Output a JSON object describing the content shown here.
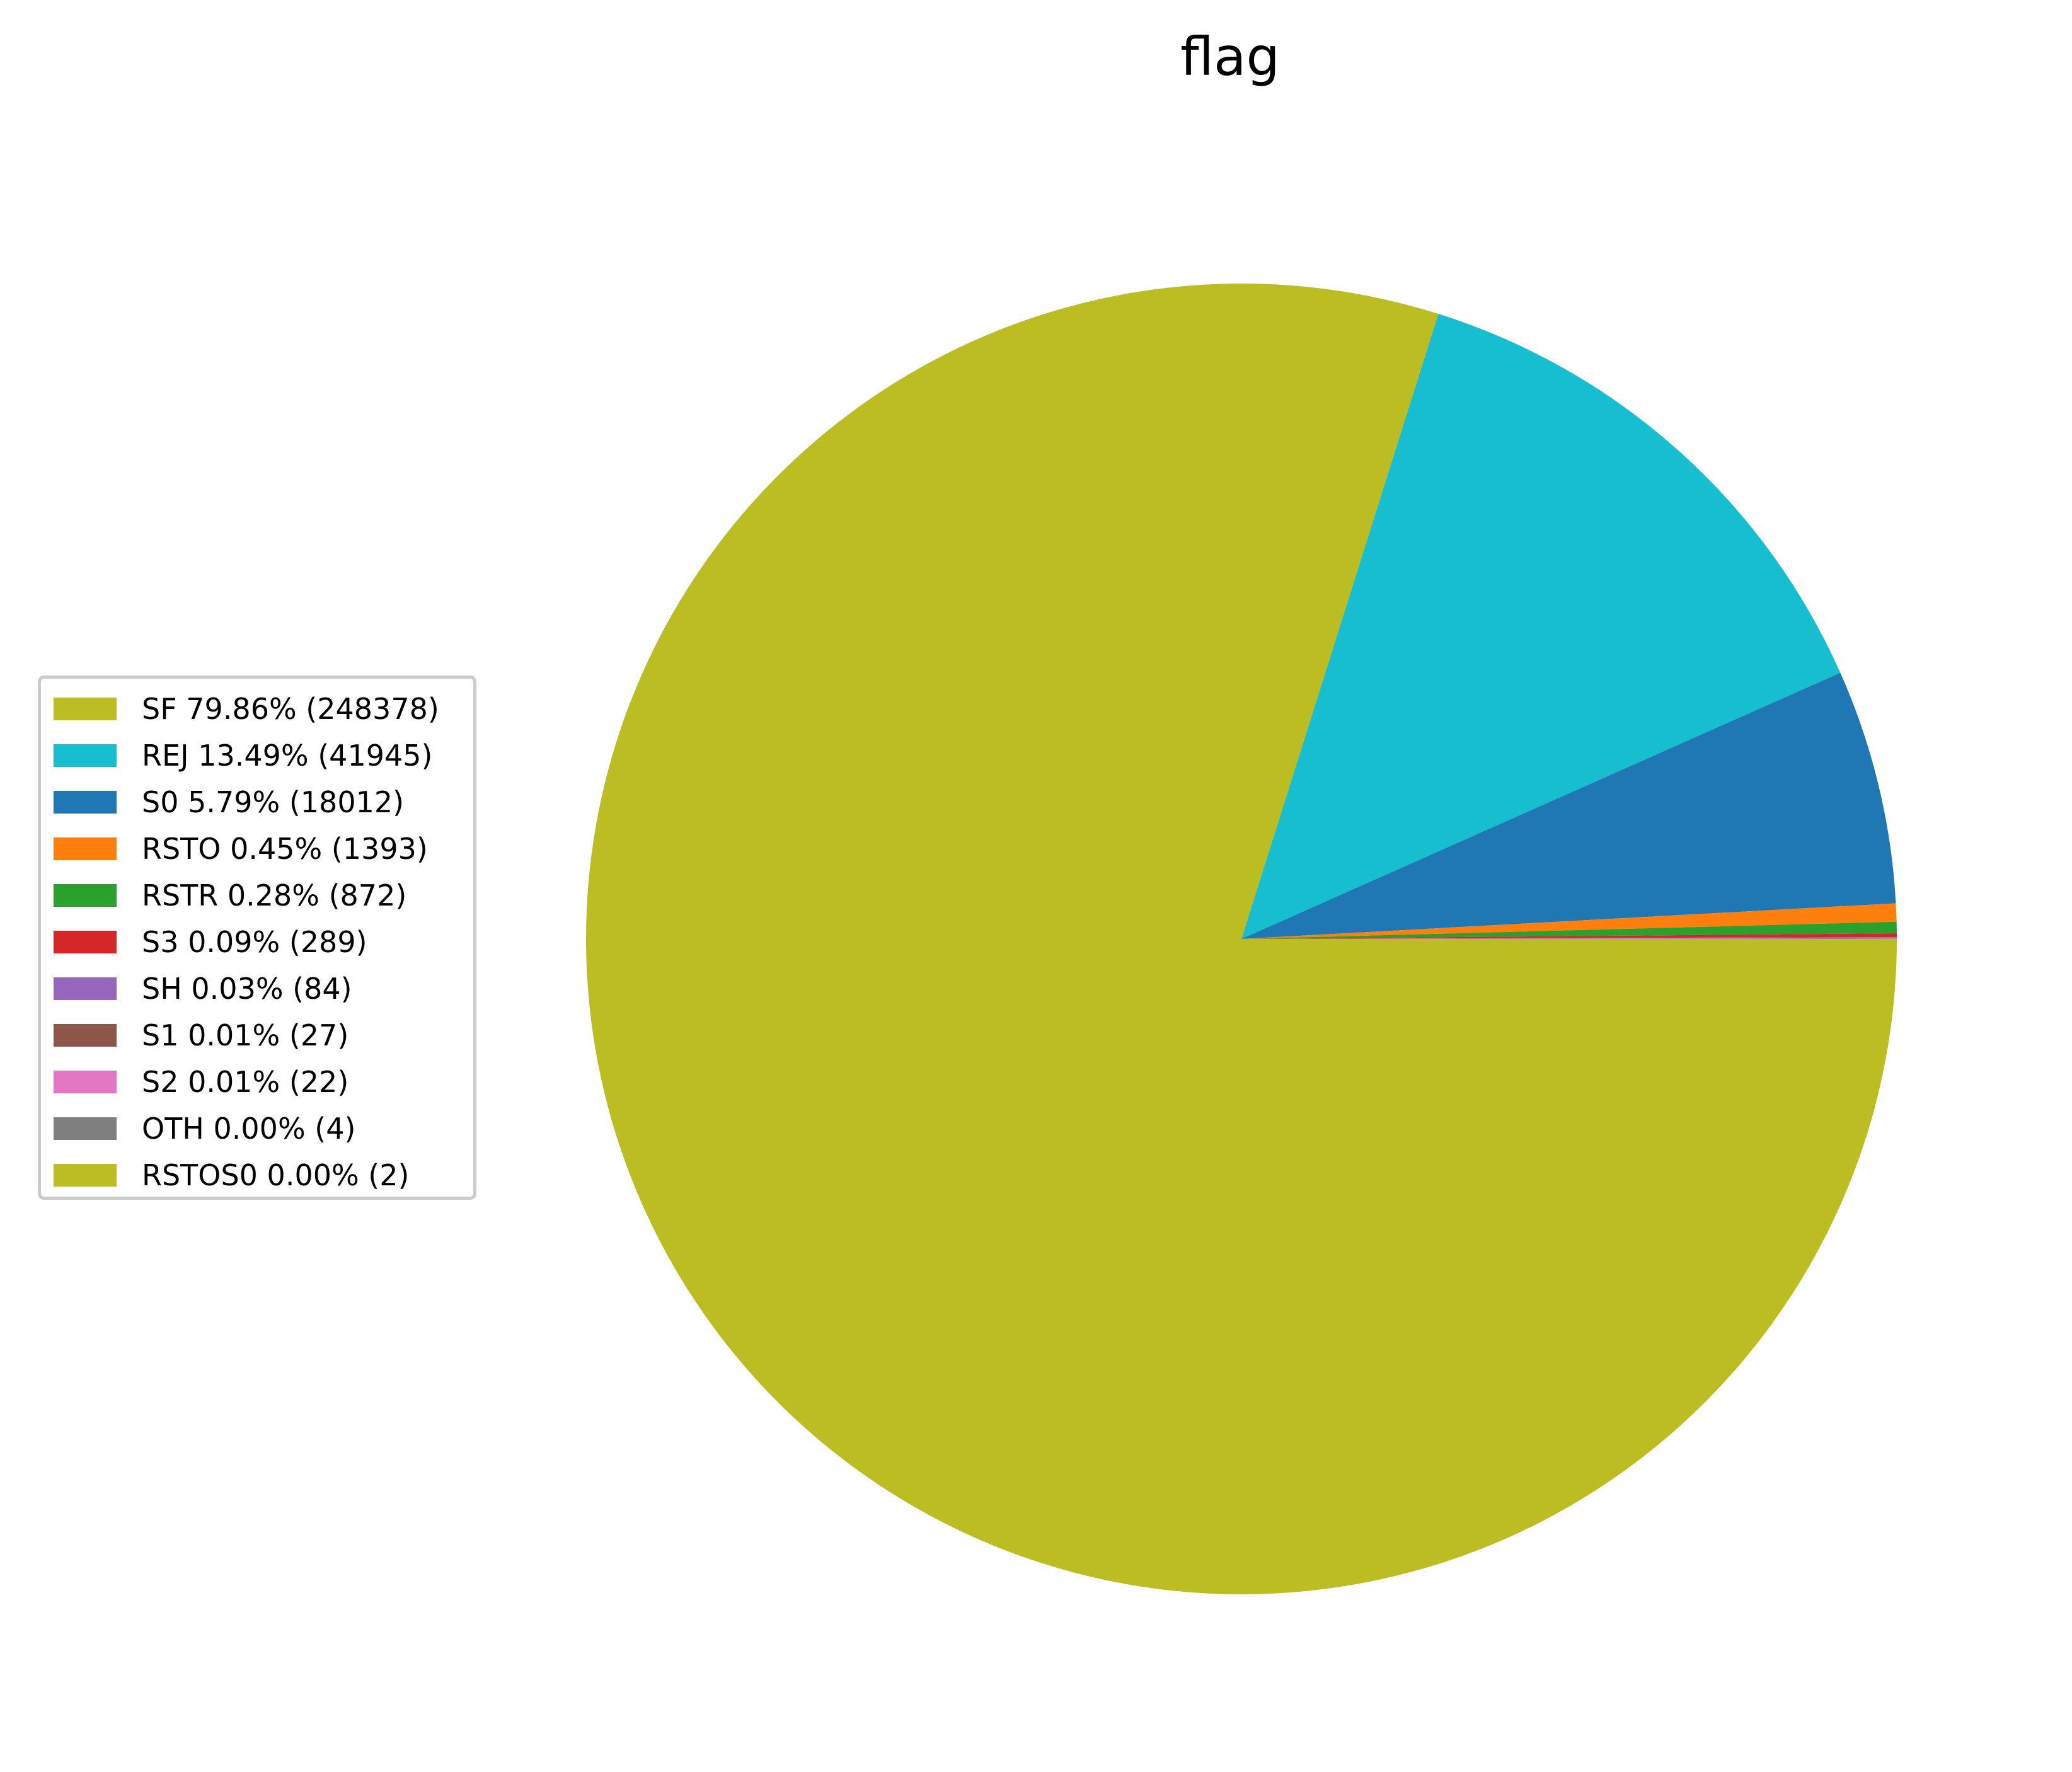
{
  "chart_data": {
    "type": "pie",
    "title": "flag",
    "slices": [
      {
        "label": "SF",
        "value": 248378,
        "percent": 79.86,
        "legend": "SF 79.86% (248378)",
        "color": "#bcbd22"
      },
      {
        "label": "REJ",
        "value": 41945,
        "percent": 13.49,
        "legend": "REJ 13.49% (41945)",
        "color": "#17becf"
      },
      {
        "label": "S0",
        "value": 18012,
        "percent": 5.79,
        "legend": "S0 5.79% (18012)",
        "color": "#1f77b4"
      },
      {
        "label": "RSTO",
        "value": 1393,
        "percent": 0.45,
        "legend": "RSTO 0.45% (1393)",
        "color": "#ff7f0e"
      },
      {
        "label": "RSTR",
        "value": 872,
        "percent": 0.28,
        "legend": "RSTR 0.28% (872)",
        "color": "#2ca02c"
      },
      {
        "label": "S3",
        "value": 289,
        "percent": 0.09,
        "legend": "S3 0.09% (289)",
        "color": "#d62728"
      },
      {
        "label": "SH",
        "value": 84,
        "percent": 0.03,
        "legend": "SH 0.03% (84)",
        "color": "#9467bd"
      },
      {
        "label": "S1",
        "value": 27,
        "percent": 0.01,
        "legend": "S1 0.01% (27)",
        "color": "#8c564b"
      },
      {
        "label": "S2",
        "value": 22,
        "percent": 0.01,
        "legend": "S2 0.01% (22)",
        "color": "#e377c2"
      },
      {
        "label": "OTH",
        "value": 4,
        "percent": 0.0,
        "legend": "OTH 0.00% (4)",
        "color": "#7f7f7f"
      },
      {
        "label": "RSTOS0",
        "value": 2,
        "percent": 0.0,
        "legend": "RSTOS0 0.00% (2)",
        "color": "#bcbd22"
      }
    ],
    "legend_position": "center-left",
    "start": "3 o'clock",
    "direction": "clockwise"
  }
}
